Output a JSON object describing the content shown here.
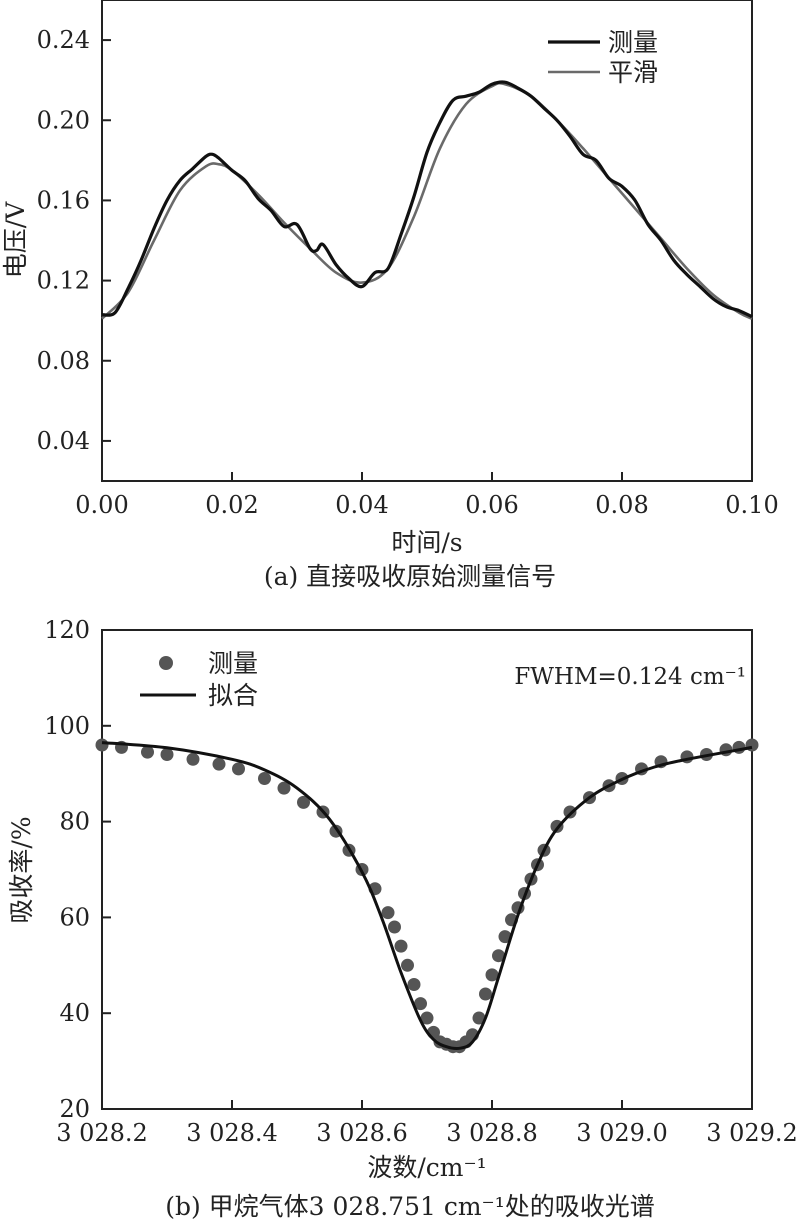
{
  "colors": {
    "measured": "#111111",
    "smooth": "#6a6a6a",
    "points": "#555555",
    "fit": "#111111",
    "axis": "#222222"
  },
  "chart_data": [
    {
      "type": "line",
      "caption": "(a) 直接吸收原始测量信号",
      "xlabel": "时间/s",
      "ylabel": "电压/V",
      "xlim": [
        0.0,
        0.1
      ],
      "ylim": [
        0.02,
        0.26
      ],
      "xticks": [
        "0.00",
        "0.02",
        "0.04",
        "0.06",
        "0.08",
        "0.10"
      ],
      "yticks": [
        "0.04",
        "0.08",
        "0.12",
        "0.16",
        "0.20",
        "0.24"
      ],
      "legend": {
        "position": "top-right",
        "entries": [
          "测量",
          "平滑"
        ]
      },
      "series": [
        {
          "name": "测量",
          "x": [
            0.0,
            0.002,
            0.004,
            0.006,
            0.008,
            0.01,
            0.012,
            0.014,
            0.016,
            0.017,
            0.018,
            0.02,
            0.022,
            0.024,
            0.026,
            0.028,
            0.03,
            0.032,
            0.033,
            0.034,
            0.036,
            0.038,
            0.04,
            0.042,
            0.044,
            0.046,
            0.048,
            0.05,
            0.052,
            0.054,
            0.056,
            0.058,
            0.06,
            0.062,
            0.064,
            0.066,
            0.068,
            0.07,
            0.072,
            0.074,
            0.076,
            0.078,
            0.08,
            0.082,
            0.084,
            0.086,
            0.088,
            0.09,
            0.092,
            0.094,
            0.096,
            0.098,
            0.1
          ],
          "y": [
            0.103,
            0.104,
            0.116,
            0.13,
            0.146,
            0.16,
            0.17,
            0.176,
            0.182,
            0.183,
            0.181,
            0.175,
            0.17,
            0.161,
            0.155,
            0.147,
            0.148,
            0.136,
            0.135,
            0.138,
            0.128,
            0.121,
            0.117,
            0.124,
            0.126,
            0.143,
            0.162,
            0.184,
            0.199,
            0.21,
            0.212,
            0.214,
            0.218,
            0.219,
            0.216,
            0.212,
            0.206,
            0.2,
            0.192,
            0.183,
            0.18,
            0.171,
            0.167,
            0.16,
            0.148,
            0.14,
            0.13,
            0.123,
            0.117,
            0.111,
            0.107,
            0.105,
            0.102
          ]
        },
        {
          "name": "平滑",
          "x": [
            0.0,
            0.004,
            0.008,
            0.012,
            0.016,
            0.018,
            0.02,
            0.024,
            0.028,
            0.032,
            0.036,
            0.04,
            0.044,
            0.048,
            0.052,
            0.056,
            0.06,
            0.062,
            0.066,
            0.07,
            0.074,
            0.078,
            0.082,
            0.086,
            0.09,
            0.094,
            0.098,
            0.1
          ],
          "y": [
            0.101,
            0.114,
            0.14,
            0.165,
            0.177,
            0.178,
            0.175,
            0.163,
            0.149,
            0.136,
            0.124,
            0.119,
            0.126,
            0.152,
            0.186,
            0.208,
            0.217,
            0.218,
            0.212,
            0.2,
            0.186,
            0.171,
            0.156,
            0.141,
            0.126,
            0.113,
            0.104,
            0.101
          ]
        }
      ]
    },
    {
      "type": "scatter",
      "caption": "(b) 甲烷气体3 028.751 cm⁻¹处的吸收光谱",
      "xlabel": "波数/cm⁻¹",
      "ylabel": "吸收率/%",
      "annotation": "FWHM=0.124 cm⁻¹",
      "xlim": [
        3028.2,
        3029.2
      ],
      "ylim": [
        20,
        120
      ],
      "xticks": [
        "3 028.2",
        "3 028.4",
        "3 028.6",
        "3 028.8",
        "3 029.0",
        "3 029.2"
      ],
      "yticks": [
        "20",
        "40",
        "60",
        "80",
        "100",
        "120"
      ],
      "legend": {
        "position": "top-left",
        "entries": [
          "测量",
          "拟合"
        ]
      },
      "series": [
        {
          "name": "测量",
          "x": [
            3028.2,
            3028.23,
            3028.27,
            3028.3,
            3028.34,
            3028.38,
            3028.41,
            3028.45,
            3028.48,
            3028.51,
            3028.54,
            3028.56,
            3028.58,
            3028.6,
            3028.62,
            3028.64,
            3028.65,
            3028.66,
            3028.67,
            3028.68,
            3028.69,
            3028.7,
            3028.71,
            3028.72,
            3028.73,
            3028.74,
            3028.75,
            3028.76,
            3028.77,
            3028.78,
            3028.79,
            3028.8,
            3028.81,
            3028.82,
            3028.83,
            3028.84,
            3028.85,
            3028.86,
            3028.87,
            3028.88,
            3028.9,
            3028.92,
            3028.95,
            3028.98,
            3029.0,
            3029.03,
            3029.06,
            3029.1,
            3029.13,
            3029.16,
            3029.18,
            3029.2
          ],
          "y": [
            96.0,
            95.5,
            94.5,
            94.0,
            93.0,
            92.0,
            91.0,
            89.0,
            87.0,
            84.0,
            82.0,
            78.0,
            74.0,
            70.0,
            66.0,
            61.0,
            58.0,
            54.0,
            50.0,
            46.0,
            42.0,
            39.0,
            36.0,
            34.0,
            33.5,
            33.0,
            33.0,
            34.0,
            35.5,
            39.0,
            44.0,
            48.0,
            52.0,
            56.0,
            59.5,
            62.0,
            65.0,
            68.0,
            71.0,
            74.0,
            79.0,
            82.0,
            85.0,
            87.5,
            89.0,
            91.0,
            92.5,
            93.5,
            94.0,
            95.0,
            95.5,
            96.0
          ]
        },
        {
          "name": "拟合",
          "x": [
            3028.2,
            3028.3,
            3028.4,
            3028.45,
            3028.5,
            3028.55,
            3028.6,
            3028.63,
            3028.66,
            3028.69,
            3028.71,
            3028.73,
            3028.751,
            3028.77,
            3028.79,
            3028.81,
            3028.84,
            3028.87,
            3028.9,
            3028.95,
            3029.0,
            3029.05,
            3029.1,
            3029.2
          ],
          "y": [
            96.5,
            95.4,
            93.0,
            90.8,
            87.0,
            80.5,
            69.5,
            60.0,
            48.5,
            38.5,
            34.5,
            33.0,
            32.7,
            34.0,
            39.0,
            47.5,
            60.5,
            71.0,
            78.5,
            85.0,
            88.8,
            91.4,
            93.0,
            95.5
          ]
        }
      ]
    }
  ]
}
